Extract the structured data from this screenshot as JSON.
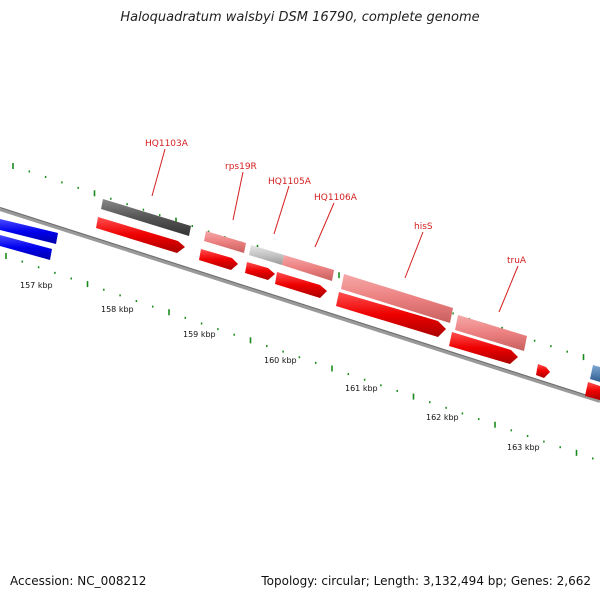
{
  "title": "Haloquadratum walsbyi DSM 16790, complete genome",
  "footer": {
    "accession": "Accession: NC_008212",
    "stats": "Topology: circular; Length: 3,132,494 bp; Genes: 2,662"
  },
  "colors": {
    "backbone": "#7a7a7a",
    "cds_forward": "#ff0000",
    "cds_highlight": "#f08080",
    "gene_dark": "#555555",
    "gene_light": "#c0c0c0",
    "blue_gene": "#0000ee",
    "steel_gene": "#4a80b5",
    "tick": "#1a8a1a",
    "label": "#d42020"
  },
  "gene_labels": [
    "HQ1103A",
    "rps19R",
    "HQ1105A",
    "HQ1106A",
    "hisS",
    "truA"
  ],
  "kbp_ticks": [
    "157 kbp",
    "158 kbp",
    "159 kbp",
    "160 kbp",
    "161 kbp",
    "162 kbp",
    "163 kbp"
  ]
}
